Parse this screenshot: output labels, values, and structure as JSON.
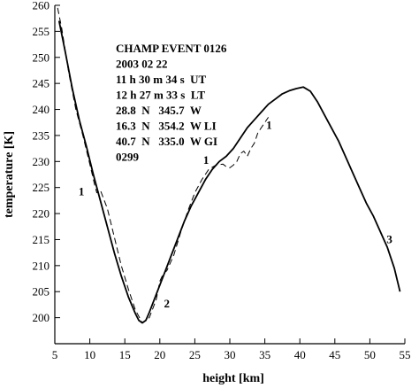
{
  "chart_data": {
    "type": "line",
    "title": "",
    "xlabel": "height [km]",
    "ylabel": "temperature [K]",
    "xlim": [
      5,
      55
    ],
    "ylim": [
      195,
      260
    ],
    "x_ticks": [
      5,
      10,
      15,
      20,
      25,
      30,
      35,
      40,
      45,
      50,
      55
    ],
    "y_ticks": [
      200,
      205,
      210,
      215,
      220,
      225,
      230,
      235,
      240,
      245,
      250,
      255,
      260
    ],
    "grid": false,
    "annotation_lines": [
      "CHAMP EVENT 0126",
      "2003 02 22",
      "11 h 30 m 34 s  UT",
      "12 h 27 m 33 s  LT",
      "28.8  N   345.7  W",
      "16.3  N   354.2  W LI",
      "40.7  N   335.0  W GI",
      "0299"
    ],
    "curve_labels": [
      {
        "text": "1",
        "x": 8.8,
        "y": 223.5
      },
      {
        "text": "1",
        "x": 26.6,
        "y": 229.5
      },
      {
        "text": "1",
        "x": 35.6,
        "y": 236.3
      },
      {
        "text": "2",
        "x": 21.0,
        "y": 202.0
      },
      {
        "text": "3",
        "x": 52.8,
        "y": 214.3
      }
    ],
    "series": [
      {
        "style": "solid",
        "x": [
          5.6,
          6.5,
          7.5,
          8.5,
          9.5,
          10.5,
          11.5,
          12.5,
          13.5,
          14.5,
          15.5,
          16.5,
          17.0,
          17.5,
          18.0,
          18.5,
          19.5,
          20.5,
          21.5,
          22.5,
          23.5,
          24.5,
          25.5,
          26.5,
          27.5,
          28.5,
          29.5,
          30.5,
          31.5,
          32.5,
          33.5,
          34.5,
          35.5,
          36.5,
          37.5,
          38.5,
          39.5,
          40.5,
          41.5,
          42.5,
          43.5,
          44.5,
          45.5,
          46.5,
          47.5,
          48.5,
          49.5,
          50.5,
          51.5,
          52.5,
          53.5,
          54.3
        ],
        "y": [
          257.0,
          251.0,
          244.0,
          238.0,
          233.0,
          227.5,
          222.5,
          217.5,
          212.5,
          208.0,
          204.0,
          200.8,
          199.5,
          199.0,
          199.5,
          201.0,
          204.5,
          208.0,
          211.5,
          215.0,
          218.5,
          221.5,
          224.0,
          226.5,
          228.5,
          230.0,
          231.0,
          232.5,
          234.5,
          236.5,
          238.0,
          239.5,
          241.0,
          242.0,
          243.0,
          243.6,
          244.0,
          244.3,
          243.5,
          241.5,
          239.0,
          236.5,
          234.0,
          231.0,
          228.0,
          225.0,
          222.0,
          219.5,
          216.5,
          213.5,
          209.5,
          205.0
        ]
      },
      {
        "style": "dashed",
        "x": [
          5.4,
          6.0,
          7.0,
          8.0,
          9.0,
          10.0,
          10.7,
          11.0,
          11.5,
          12.5,
          13.5,
          14.5,
          15.5,
          16.5,
          17.5,
          18.5,
          19.5,
          20.0,
          20.5,
          21.0,
          22.0,
          23.0,
          24.0,
          25.0,
          26.0,
          27.0,
          28.0,
          29.0,
          29.5,
          30.0,
          30.5,
          31.0,
          31.5,
          32.0,
          32.5,
          33.0,
          33.5,
          34.0,
          34.5,
          35.0,
          35.5
        ],
        "y": [
          259.5,
          255.5,
          247.0,
          240.0,
          235.0,
          229.5,
          225.5,
          224.0,
          224.5,
          221.0,
          215.5,
          210.0,
          205.5,
          201.5,
          199.0,
          200.0,
          203.5,
          207.0,
          208.5,
          209.0,
          212.0,
          216.5,
          220.5,
          224.0,
          226.5,
          228.5,
          229.3,
          229.5,
          229.0,
          228.8,
          229.3,
          230.0,
          231.5,
          232.0,
          231.0,
          232.5,
          233.5,
          235.5,
          236.5,
          237.5,
          238.5
        ]
      }
    ]
  }
}
